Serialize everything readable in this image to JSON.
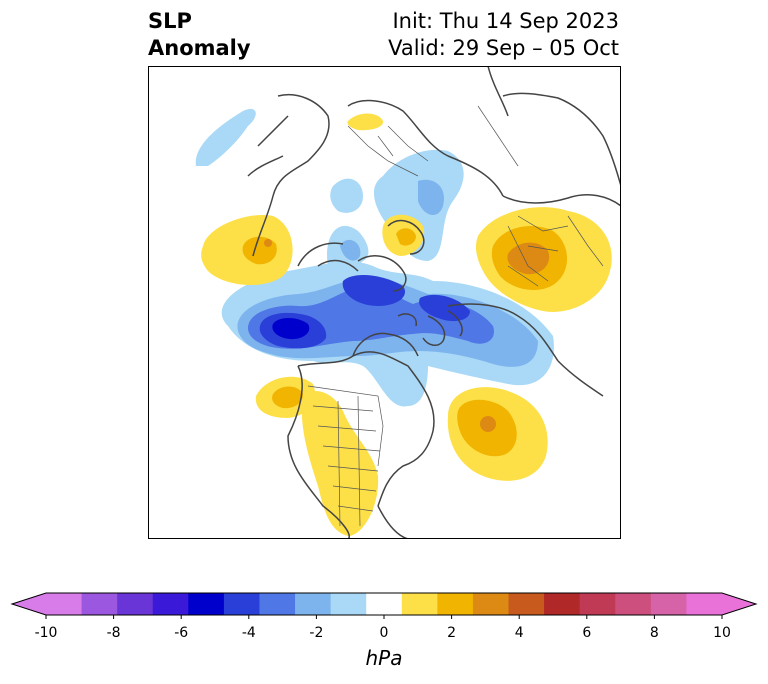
{
  "header": {
    "title_line1": "SLP",
    "title_line2": "Anomaly",
    "init_text": "Init: Thu 14 Sep 2023",
    "valid_text": "Valid: 29 Sep – 05 Oct"
  },
  "colorbar": {
    "unit": "hPa",
    "ticks": [
      "-10",
      "-8",
      "-6",
      "-4",
      "-2",
      "0",
      "2",
      "4",
      "6",
      "8",
      "10"
    ],
    "levels": [
      -10,
      -9,
      -8,
      -7,
      -6,
      -5,
      -4,
      -3,
      -2,
      -1,
      1,
      2,
      3,
      4,
      5,
      6,
      7,
      8,
      9,
      10
    ],
    "colors": [
      "#d77ce8",
      "#9b57e0",
      "#6a35d6",
      "#3a1ad8",
      "#0000cd",
      "#2a3ed8",
      "#5077e6",
      "#7eb4ee",
      "#a9d9f6",
      "#ffffff",
      "#fde048",
      "#f1b400",
      "#dd8a14",
      "#c75a1c",
      "#b02828",
      "#c13a55",
      "#cc4f7d",
      "#d662a8",
      "#e872d8"
    ],
    "extend_min_color": "#d77ce8",
    "extend_max_color": "#e872d8"
  },
  "map": {
    "projection": "north-polar-stereographic",
    "region": "Northern Hemisphere",
    "anomaly_centers": [
      {
        "region": "Aleutians / North Pacific",
        "sign": "negative",
        "peak_hpa": -6
      },
      {
        "region": "Bering Sea",
        "sign": "negative",
        "peak_hpa": -4
      },
      {
        "region": "Gulf of Alaska",
        "sign": "negative",
        "peak_hpa": -4
      },
      {
        "region": "Arctic Ocean",
        "sign": "negative",
        "peak_hpa": -2
      },
      {
        "region": "Eastern Europe",
        "sign": "positive",
        "peak_hpa": 4
      },
      {
        "region": "North Atlantic",
        "sign": "positive",
        "peak_hpa": 4
      },
      {
        "region": "Western North America",
        "sign": "positive",
        "peak_hpa": 2
      },
      {
        "region": "Great Plains",
        "sign": "positive",
        "peak_hpa": 2
      },
      {
        "region": "Eastern Asia",
        "sign": "positive",
        "peak_hpa": 3
      },
      {
        "region": "Scandinavia",
        "sign": "positive",
        "peak_hpa": 2
      }
    ]
  }
}
